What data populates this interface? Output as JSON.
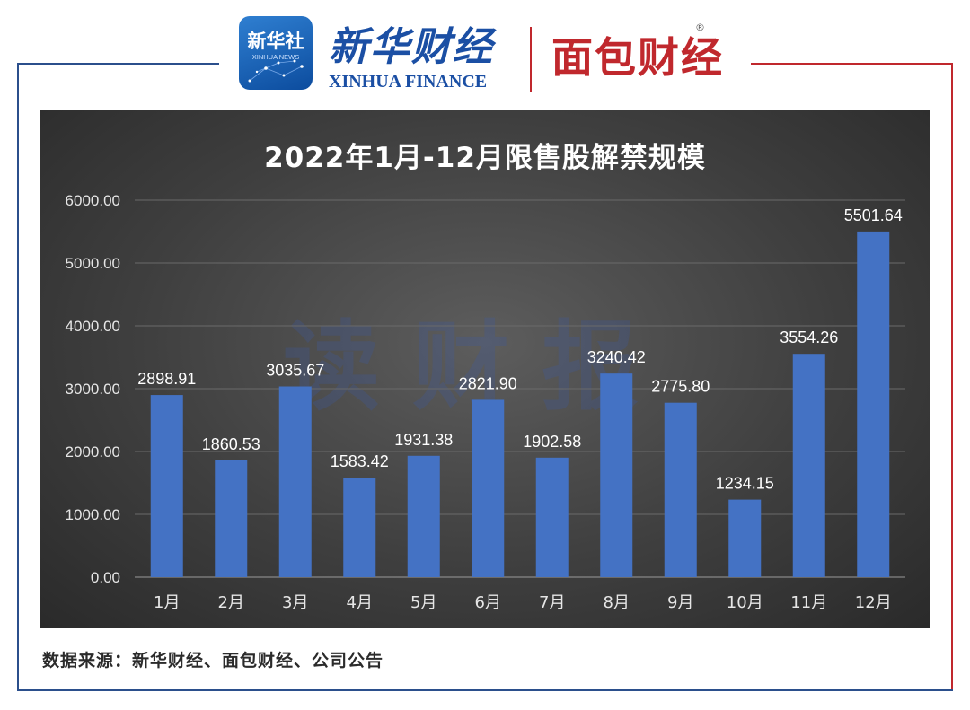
{
  "header": {
    "xinhua_logo_text": "新华社",
    "xinhua_logo_sub": "XINHUA NEWS",
    "xinhua_finance_cn": "新华财经",
    "xinhua_finance_en": "XINHUA FINANCE",
    "mianbao_logo": "面包财经",
    "registered_mark": "®"
  },
  "watermark": "读财报",
  "source_note": "数据来源：新华财经、面包财经、公司公告",
  "colors": {
    "bar": "#4472c4",
    "frame_blue": "#2b4f8c",
    "frame_red": "#c0282d"
  },
  "chart_data": {
    "type": "bar",
    "title": "2022年1月-12月限售股解禁规模",
    "categories": [
      "1月",
      "2月",
      "3月",
      "4月",
      "5月",
      "6月",
      "7月",
      "8月",
      "9月",
      "10月",
      "11月",
      "12月"
    ],
    "values": [
      2898.91,
      1860.53,
      3035.67,
      1583.42,
      1931.38,
      2821.9,
      1902.58,
      3240.42,
      2775.8,
      1234.15,
      3554.26,
      5501.64
    ],
    "value_labels": [
      "2898.91",
      "1860.53",
      "3035.67",
      "1583.42",
      "1931.38",
      "2821.90",
      "1902.58",
      "3240.42",
      "2775.80",
      "1234.15",
      "3554.26",
      "5501.64"
    ],
    "y_ticks": [
      0,
      1000,
      2000,
      3000,
      4000,
      5000,
      6000
    ],
    "y_tick_labels": [
      "0.00",
      "1000.00",
      "2000.00",
      "3000.00",
      "4000.00",
      "5000.00",
      "6000.00"
    ],
    "ylim": [
      0,
      6000
    ],
    "xlabel": "",
    "ylabel": "",
    "grid": true,
    "legend": "none"
  }
}
